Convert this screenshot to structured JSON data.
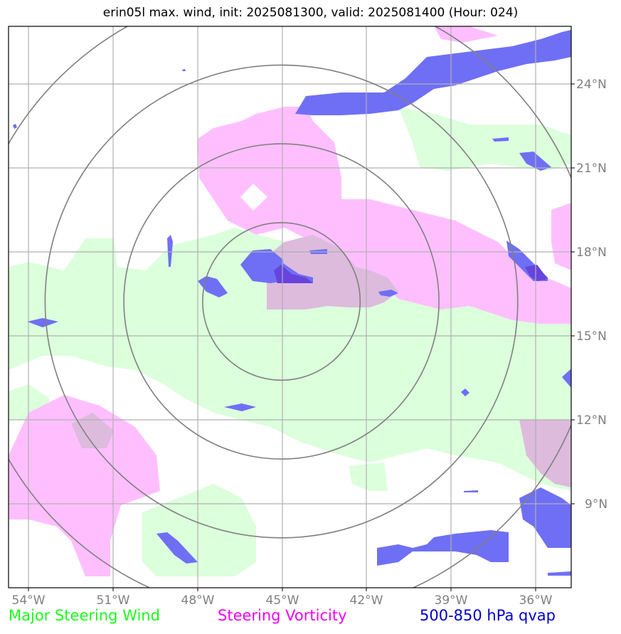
{
  "title": "erin05l max. wind, init: 2025081300, valid: 2025081400 (Hour: 024)",
  "legend": {
    "item1": {
      "label": "Major Steering Wind",
      "color": "#19ff19"
    },
    "item2": {
      "label": "Steering Vorticity",
      "color": "#f200f2"
    },
    "item3": {
      "label": "500-850 hPa qvap",
      "color": "#0000cc"
    }
  },
  "axes": {
    "lon_ticks": [
      "54°W",
      "51°W",
      "48°W",
      "45°W",
      "42°W",
      "39°W",
      "36°W"
    ],
    "lat_ticks": [
      "24°N",
      "21°N",
      "18°N",
      "15°N",
      "12°N",
      "9°N"
    ]
  },
  "map": {
    "lon_range": [
      -54.7,
      -34.7
    ],
    "lat_range": [
      6.0,
      26.0
    ],
    "center_lon": -45.0,
    "center_lat": 16.2,
    "range_rings_deg": [
      2.8,
      5.6,
      8.4,
      11.2
    ],
    "fill_colors": {
      "steering_wind": "#dcffdc",
      "vorticity": "#ffbfff",
      "overlap": "#ddbbdd",
      "qvap": "#6f6ff5"
    }
  }
}
